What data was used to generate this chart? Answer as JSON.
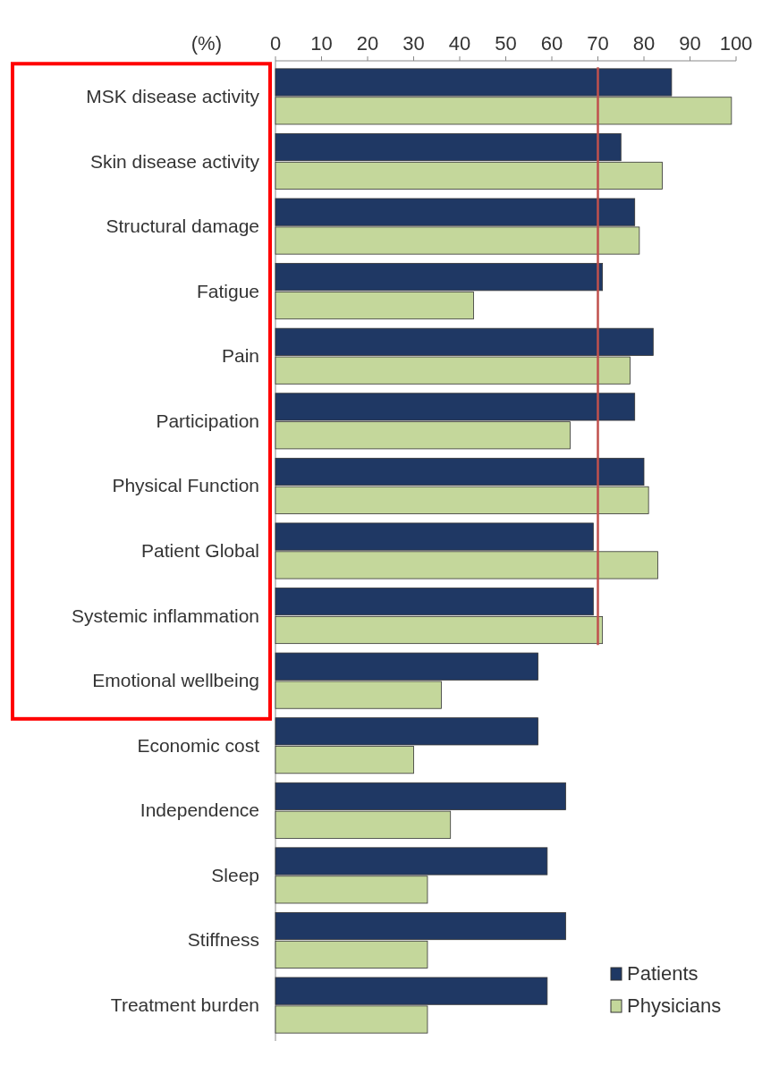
{
  "chart_data": {
    "type": "bar",
    "orientation": "horizontal",
    "xlabel": "(%)",
    "categories": [
      "MSK disease activity",
      "Skin disease activity",
      "Structural damage",
      "Fatigue",
      "Pain",
      "Participation",
      "Physical Function",
      "Patient Global",
      "Systemic inflammation",
      "Emotional wellbeing",
      "Economic cost",
      "Independence",
      "Sleep",
      "Stiffness",
      "Treatment burden"
    ],
    "series": [
      {
        "name": "Patients",
        "color": "#1f3864",
        "values": [
          86,
          75,
          78,
          71,
          82,
          78,
          80,
          69,
          69,
          57,
          57,
          63,
          59,
          63,
          59
        ]
      },
      {
        "name": "Physicians",
        "color": "#c4d79b",
        "values": [
          99,
          84,
          79,
          43,
          77,
          64,
          81,
          83,
          71,
          36,
          30,
          38,
          33,
          33,
          33
        ]
      }
    ],
    "xlim": [
      0,
      100
    ],
    "xticks": [
      0,
      10,
      20,
      30,
      40,
      50,
      60,
      70,
      80,
      90,
      100
    ],
    "ref_lines": [
      {
        "axis": "x",
        "value": 70,
        "color": "#c0504d"
      }
    ],
    "legend": "bottom right",
    "grid": false
  }
}
